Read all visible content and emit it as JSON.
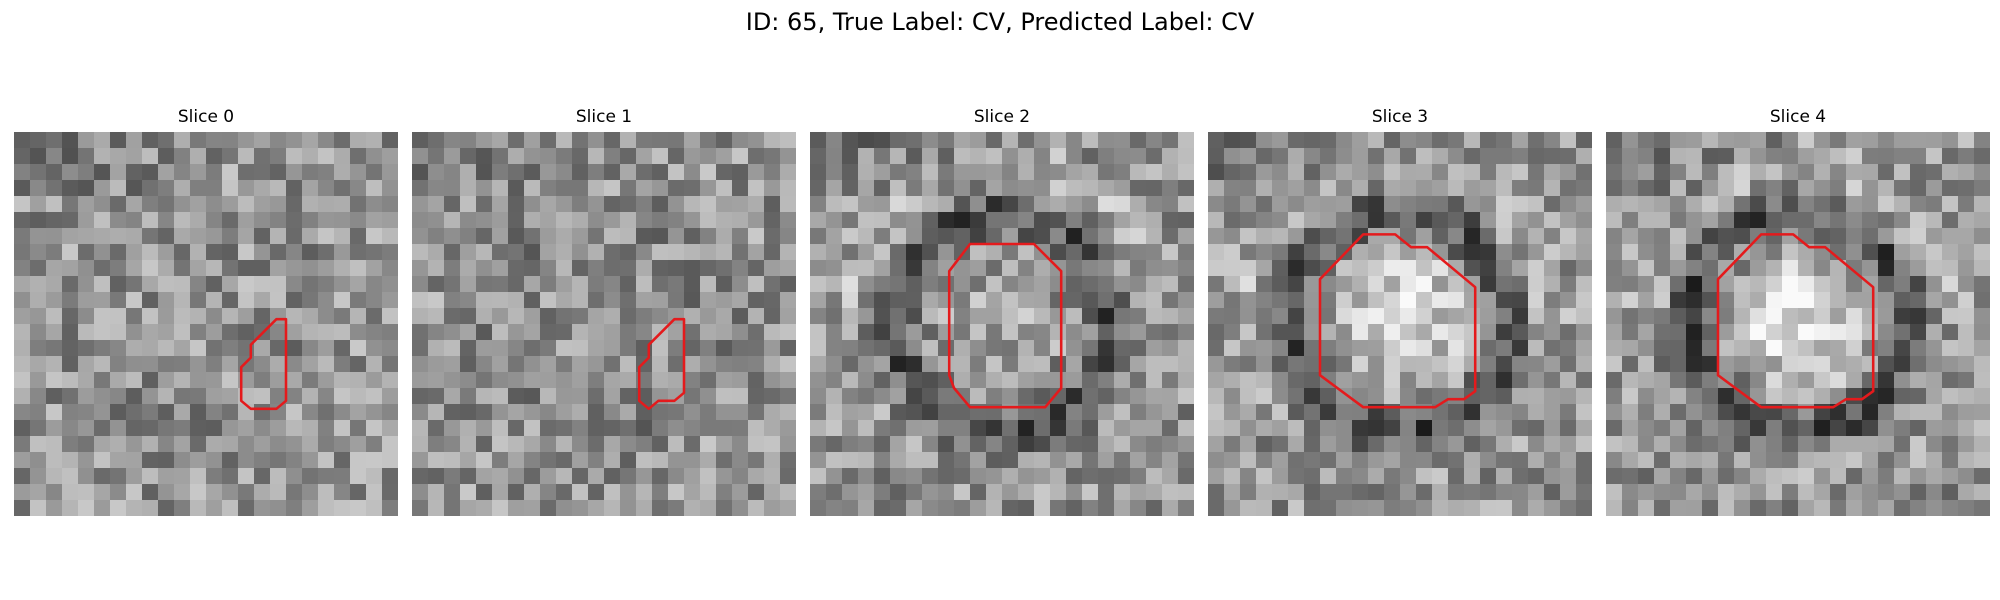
{
  "figure": {
    "title": "ID: 65, True Label: CV, Predicted Label: CV",
    "contour_color": "#e41a1c"
  },
  "slices": [
    {
      "label": "Slice 0"
    },
    {
      "label": "Slice 1"
    },
    {
      "label": "Slice 2"
    },
    {
      "label": "Slice 3"
    },
    {
      "label": "Slice 4"
    }
  ]
}
